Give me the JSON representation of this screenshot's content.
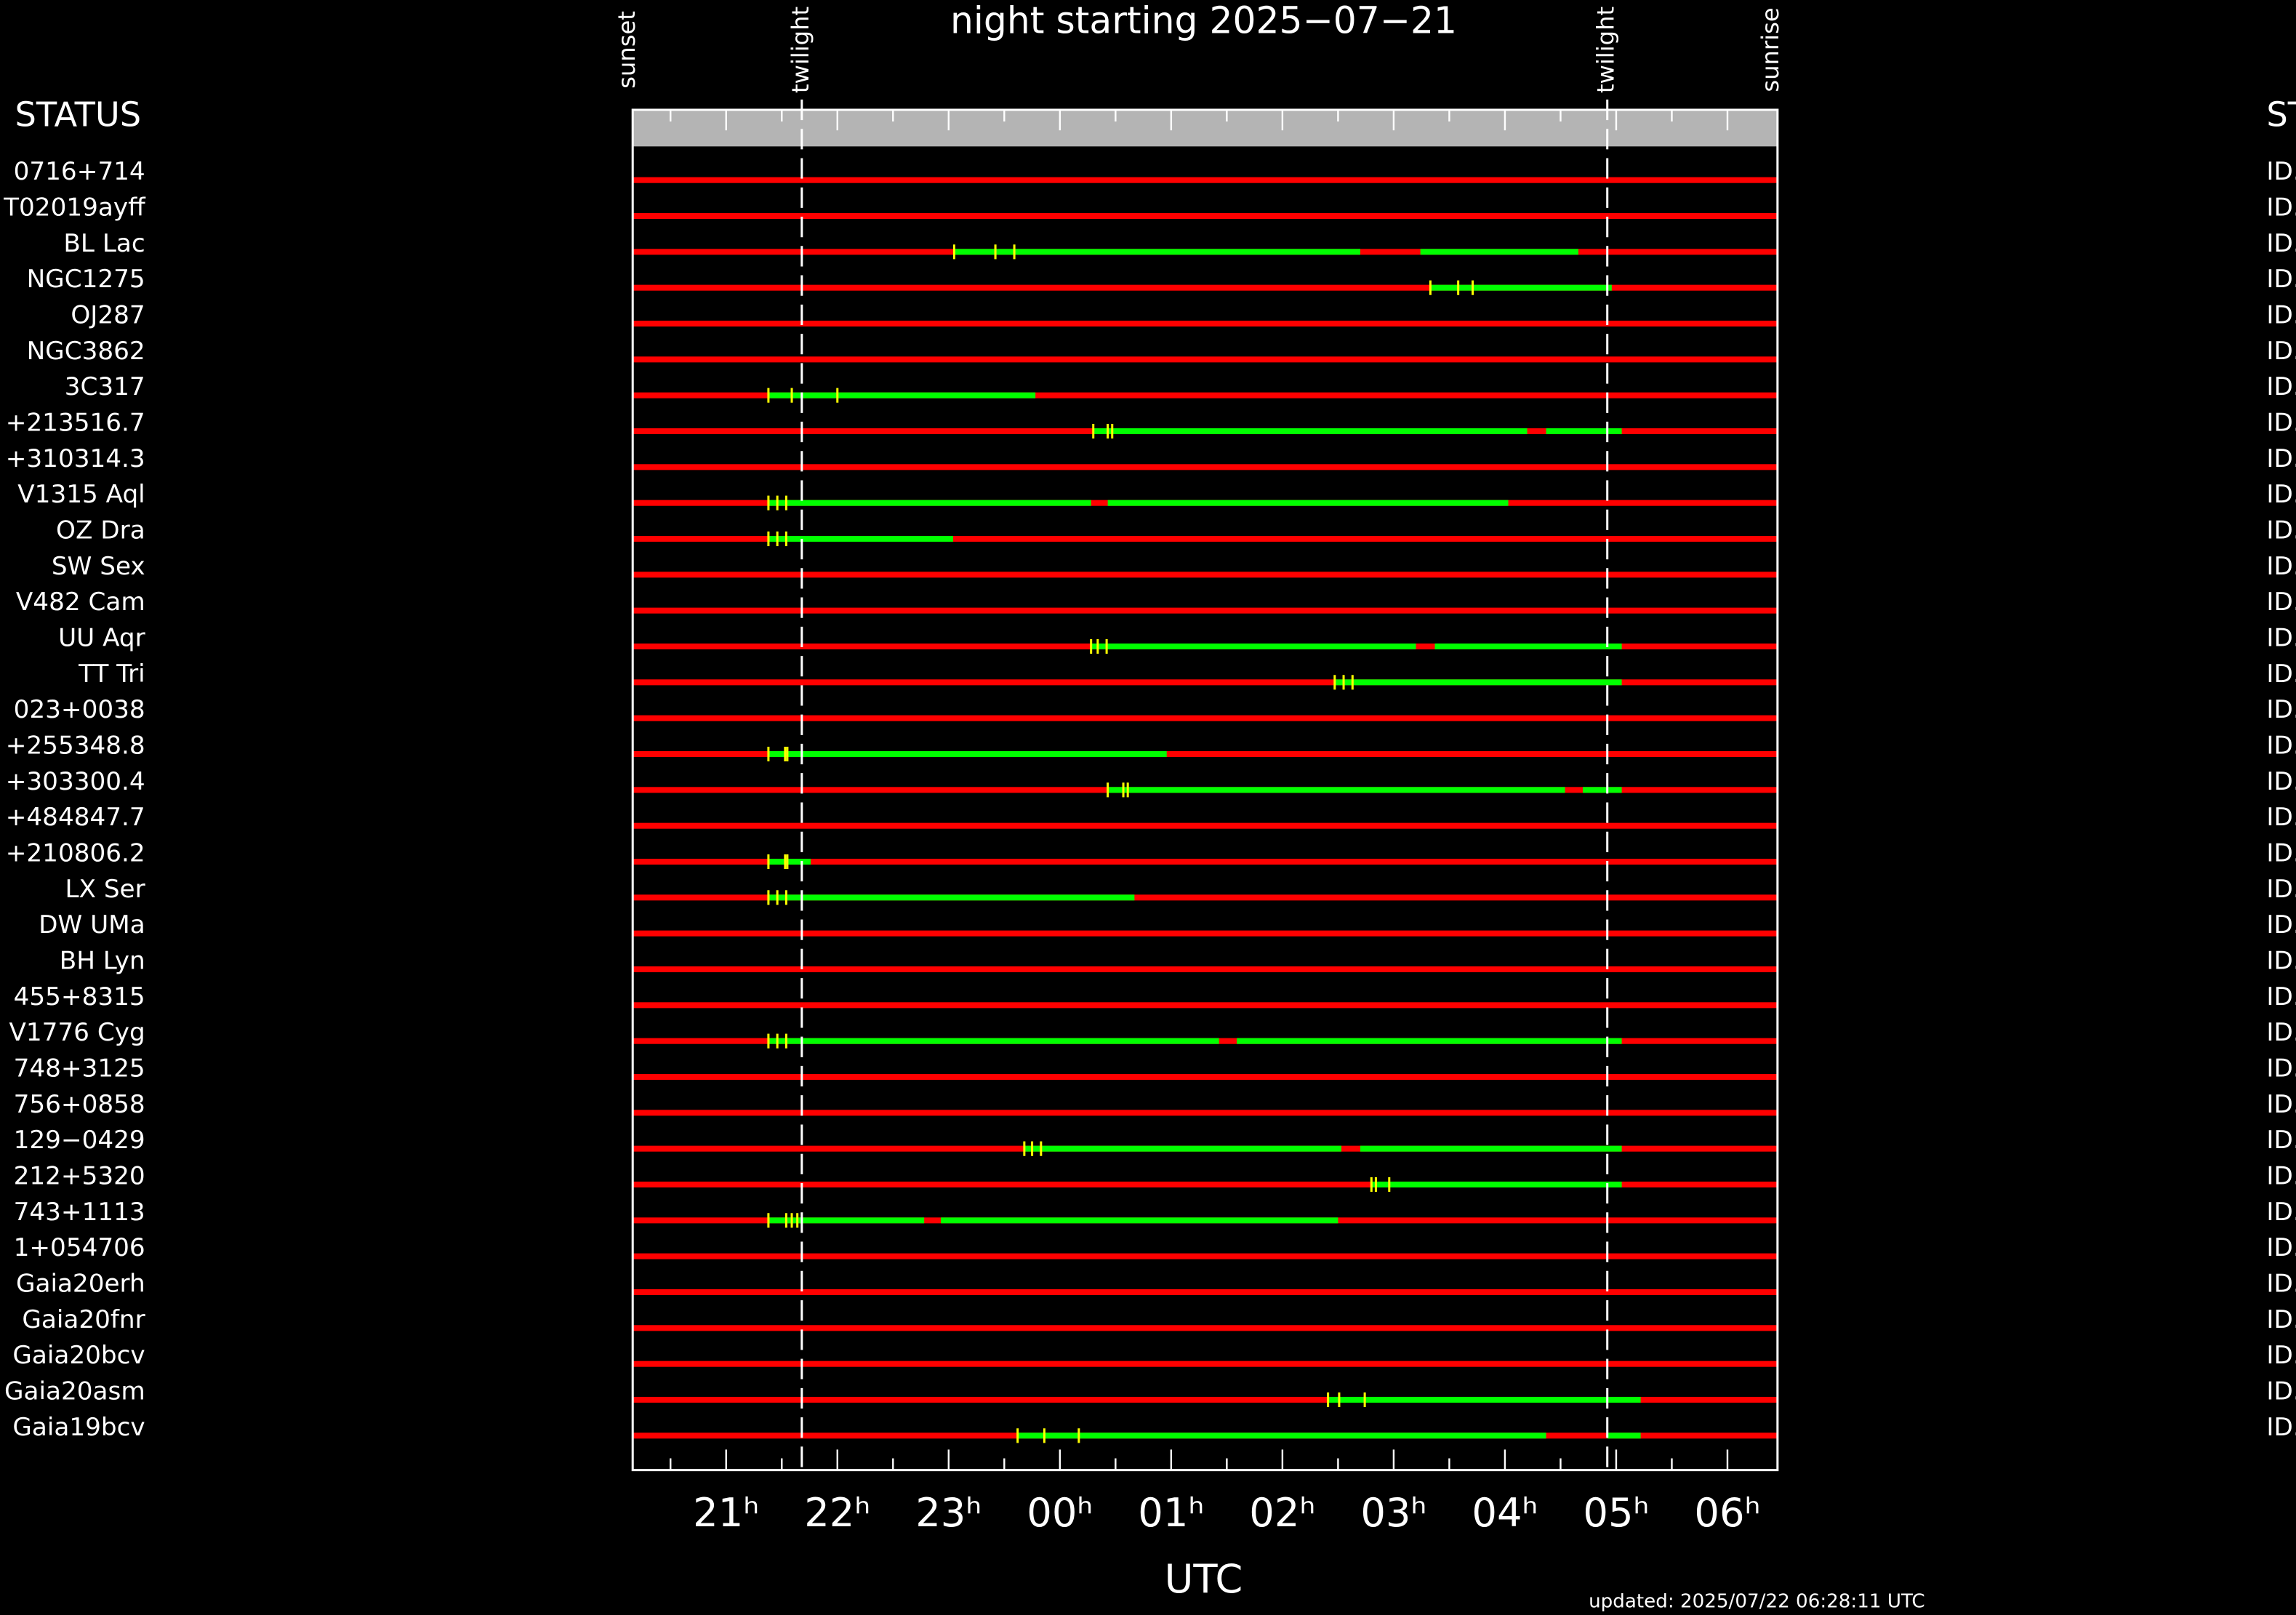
{
  "chart_data": {
    "type": "timeline",
    "title": "night starting 2025−07−21",
    "xlabel": "UTC",
    "left_header": "STATUS",
    "right_header": "ST",
    "updated": "updated: 2025/07/22 06:28:11 UTC",
    "xlim": [
      20.16,
      30.45
    ],
    "xticks": [
      {
        "value": 21,
        "label": "21ʰ"
      },
      {
        "value": 22,
        "label": "22ʰ"
      },
      {
        "value": 23,
        "label": "23ʰ"
      },
      {
        "value": 24,
        "label": "00ʰ"
      },
      {
        "value": 25,
        "label": "01ʰ"
      },
      {
        "value": 26,
        "label": "02ʰ"
      },
      {
        "value": 27,
        "label": "03ʰ"
      },
      {
        "value": 28,
        "label": "04ʰ"
      },
      {
        "value": 29,
        "label": "05ʰ"
      },
      {
        "value": 30,
        "label": "06ʰ"
      }
    ],
    "xminorticks": [
      20.5,
      21.5,
      22.5,
      23.5,
      24.5,
      25.5,
      26.5,
      27.5,
      28.5,
      29.5
    ],
    "events": [
      {
        "label": "sunset",
        "value": 20.12,
        "line": false
      },
      {
        "label": "twilight",
        "value": 21.68,
        "line": true
      },
      {
        "label": "twilight",
        "value": 28.92,
        "line": true
      },
      {
        "label": "sunrise",
        "value": 30.4,
        "line": false
      }
    ],
    "track_color": "#ff0000",
    "segment_color": "#00ff00",
    "marker_color": "#ffff00",
    "rows": [
      {
        "name": "0716+714",
        "status": "ID.",
        "segments": [],
        "markers": []
      },
      {
        "name": "T02019ayff",
        "status": "ID.",
        "segments": [],
        "markers": []
      },
      {
        "name": "BL Lac",
        "status": "ID.",
        "segments": [
          [
            23.05,
            26.7
          ],
          [
            27.24,
            28.66
          ]
        ],
        "markers": [
          23.05,
          23.42,
          23.59
        ]
      },
      {
        "name": "NGC1275",
        "status": "ID.",
        "segments": [
          [
            27.33,
            28.96
          ]
        ],
        "markers": [
          27.33,
          27.58,
          27.71
        ]
      },
      {
        "name": "OJ287",
        "status": "ID.",
        "segments": [],
        "markers": []
      },
      {
        "name": "NGC3862",
        "status": "ID.",
        "segments": [],
        "markers": []
      },
      {
        "name": "3C317",
        "status": "ID.",
        "segments": [
          [
            21.38,
            23.78
          ]
        ],
        "markers": [
          21.38,
          21.59,
          22.0
        ]
      },
      {
        "name": "+213516.7",
        "status": "ID.",
        "segments": [
          [
            24.3,
            28.2
          ],
          [
            28.37,
            29.05
          ]
        ],
        "markers": [
          24.3,
          24.43,
          24.47
        ]
      },
      {
        "name": "+310314.3",
        "status": "ID.",
        "segments": [],
        "markers": []
      },
      {
        "name": "V1315 Aql",
        "status": "ID.",
        "segments": [
          [
            21.38,
            24.28
          ],
          [
            24.43,
            28.03
          ]
        ],
        "markers": [
          21.38,
          21.46,
          21.54
        ]
      },
      {
        "name": "OZ Dra",
        "status": "ID.",
        "segments": [
          [
            21.38,
            23.04
          ]
        ],
        "markers": [
          21.38,
          21.46,
          21.54
        ]
      },
      {
        "name": "SW Sex",
        "status": "ID.",
        "segments": [],
        "markers": []
      },
      {
        "name": "V482 Cam",
        "status": "ID.",
        "segments": [],
        "markers": []
      },
      {
        "name": "UU Aqr",
        "status": "ID.",
        "segments": [
          [
            24.28,
            27.2
          ],
          [
            27.37,
            29.05
          ]
        ],
        "markers": [
          24.28,
          24.34,
          24.42
        ]
      },
      {
        "name": "TT Tri",
        "status": "ID.",
        "segments": [
          [
            26.47,
            29.05
          ]
        ],
        "markers": [
          26.47,
          26.55,
          26.63
        ]
      },
      {
        "name": "023+0038",
        "status": "ID.",
        "segments": [],
        "markers": []
      },
      {
        "name": "+255348.8",
        "status": "ID.",
        "segments": [
          [
            21.38,
            24.96
          ]
        ],
        "markers": [
          21.38,
          21.53,
          21.55
        ]
      },
      {
        "name": "+303300.4",
        "status": "ID.",
        "segments": [
          [
            24.43,
            28.54
          ],
          [
            28.7,
            29.05
          ]
        ],
        "markers": [
          24.43,
          24.57,
          24.61
        ]
      },
      {
        "name": "+484847.7",
        "status": "ID.",
        "segments": [],
        "markers": []
      },
      {
        "name": "+210806.2",
        "status": "ID.",
        "segments": [
          [
            21.38,
            21.76
          ]
        ],
        "markers": [
          21.38,
          21.53,
          21.55
        ]
      },
      {
        "name": "LX Ser",
        "status": "ID.",
        "segments": [
          [
            21.38,
            24.67
          ]
        ],
        "markers": [
          21.38,
          21.46,
          21.54
        ]
      },
      {
        "name": "DW UMa",
        "status": "ID.",
        "segments": [],
        "markers": []
      },
      {
        "name": "BH Lyn",
        "status": "ID.",
        "segments": [],
        "markers": []
      },
      {
        "name": "455+8315",
        "status": "ID.",
        "segments": [],
        "markers": []
      },
      {
        "name": "V1776 Cyg",
        "status": "ID.",
        "segments": [
          [
            21.38,
            25.43
          ],
          [
            25.59,
            29.05
          ]
        ],
        "markers": [
          21.38,
          21.46,
          21.54
        ]
      },
      {
        "name": "748+3125",
        "status": "ID.",
        "segments": [],
        "markers": []
      },
      {
        "name": "756+0858",
        "status": "ID.",
        "segments": [],
        "markers": []
      },
      {
        "name": "129−0429",
        "status": "ID.",
        "segments": [
          [
            23.68,
            26.53
          ],
          [
            26.7,
            29.05
          ]
        ],
        "markers": [
          23.68,
          23.75,
          23.83
        ]
      },
      {
        "name": "212+5320",
        "status": "ID.",
        "segments": [
          [
            26.8,
            29.05
          ]
        ],
        "markers": [
          26.8,
          26.84,
          26.96
        ]
      },
      {
        "name": "743+1113",
        "status": "ID.",
        "segments": [
          [
            21.38,
            22.78
          ],
          [
            22.93,
            26.5
          ]
        ],
        "markers": [
          21.38,
          21.54,
          21.59,
          21.64
        ]
      },
      {
        "name": "1+054706",
        "status": "ID.",
        "segments": [],
        "markers": []
      },
      {
        "name": "Gaia20erh",
        "status": "ID.",
        "segments": [],
        "markers": []
      },
      {
        "name": "Gaia20fnr",
        "status": "ID.",
        "segments": [],
        "markers": []
      },
      {
        "name": "Gaia20bcv",
        "status": "ID.",
        "segments": [],
        "markers": []
      },
      {
        "name": "Gaia20asm",
        "status": "ID.",
        "segments": [
          [
            26.41,
            29.22
          ]
        ],
        "markers": [
          26.41,
          26.51,
          26.74
        ]
      },
      {
        "name": "Gaia19bcv",
        "status": "ID.",
        "segments": [
          [
            23.62,
            28.37
          ],
          [
            28.92,
            29.22
          ]
        ],
        "markers": [
          23.62,
          23.86,
          24.17
        ]
      }
    ]
  }
}
